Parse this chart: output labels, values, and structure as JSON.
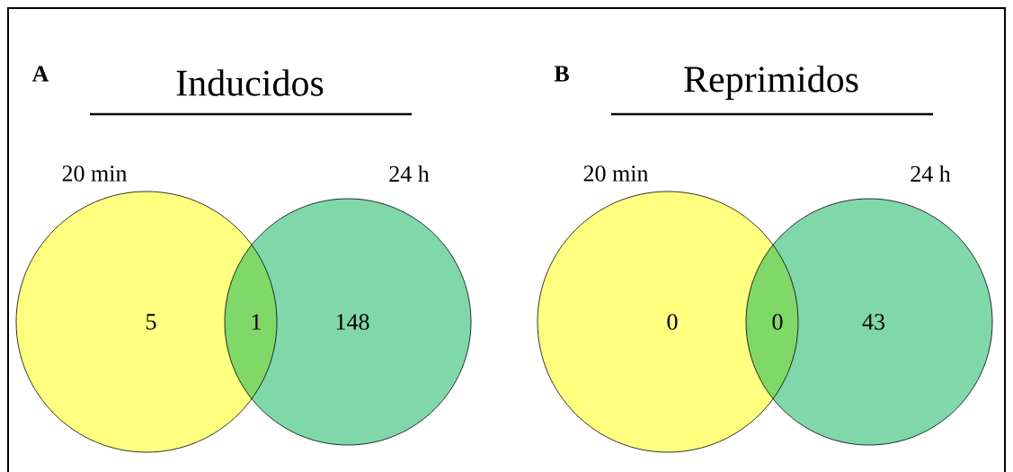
{
  "chart_data": [
    {
      "type": "other",
      "title": "Inducidos",
      "annotations": [
        "A"
      ],
      "categories": [
        "20 min",
        null,
        "24 h"
      ],
      "values": [
        5,
        1,
        148
      ],
      "colors": [
        "#ffff80",
        "#80d868",
        "#80d8aa"
      ],
      "data_labels": true
    },
    {
      "type": "other",
      "title": "Reprimidos",
      "annotations": [
        "B"
      ],
      "categories": [
        "20 min",
        null,
        "24 h"
      ],
      "values": [
        0,
        0,
        43
      ],
      "colors": [
        "#ffff80",
        "#80d868",
        "#80d8aa"
      ],
      "data_labels": true
    }
  ]
}
